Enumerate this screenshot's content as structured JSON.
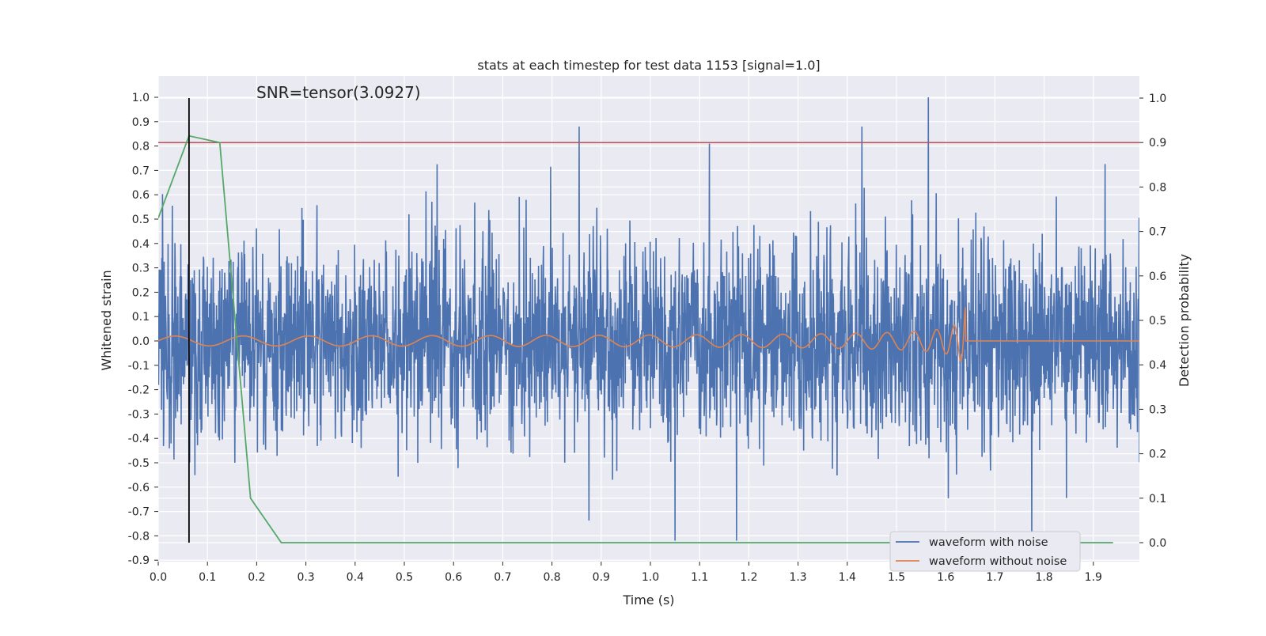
{
  "chart_data": {
    "type": "line",
    "title": "stats at each timestep for test data 1153 [signal=1.0]",
    "annotation": "SNR=tensor(3.0927)",
    "xlabel": "Time (s)",
    "ylabel_left": "Whitened strain",
    "ylabel_right": "Detection probability",
    "xlim": [
      0.0,
      1.995
    ],
    "ylim_left": [
      -0.9,
      1.0
    ],
    "ylim_right": [
      0.0,
      1.0
    ],
    "x_ticks": [
      "0.0",
      "0.1",
      "0.2",
      "0.3",
      "0.4",
      "0.5",
      "0.6",
      "0.7",
      "0.8",
      "0.9",
      "1.0",
      "1.1",
      "1.2",
      "1.3",
      "1.4",
      "1.5",
      "1.6",
      "1.7",
      "1.8",
      "1.9"
    ],
    "y_ticks_left": [
      "1.0",
      "0.9",
      "0.8",
      "0.7",
      "0.6",
      "0.5",
      "0.4",
      "0.3",
      "0.2",
      "0.1",
      "0.0",
      "-0.1",
      "-0.2",
      "-0.3",
      "-0.4",
      "-0.5",
      "-0.6",
      "-0.7",
      "-0.8",
      "-0.9"
    ],
    "y_ticks_right": [
      "1.0",
      "0.9",
      "0.8",
      "0.7",
      "0.6",
      "0.5",
      "0.4",
      "0.3",
      "0.2",
      "0.1",
      "0.0"
    ],
    "grid": true,
    "legend_position": "lower right",
    "series": [
      {
        "name": "waveform with noise",
        "color": "#4c72b0",
        "axis": "left",
        "noise_std": 0.2,
        "max": 1.0,
        "min": -0.82,
        "note_peaks": [
          {
            "x": 0.855,
            "y": 0.88
          },
          {
            "x": 1.12,
            "y": 0.81
          },
          {
            "x": 1.43,
            "y": 0.88
          },
          {
            "x": 1.565,
            "y": 1.0
          },
          {
            "x": 1.05,
            "y": -0.82
          },
          {
            "x": 1.775,
            "y": -0.82
          }
        ]
      },
      {
        "name": "waveform without noise",
        "color": "#dd8452",
        "axis": "left",
        "merger_time": 1.64,
        "peak_amplitude": 0.14
      },
      {
        "name": "detection probability",
        "color": "#55a868",
        "axis": "right",
        "x": [
          0.0,
          0.0625,
          0.125,
          0.1875,
          0.25,
          1.94
        ],
        "y": [
          0.73,
          0.915,
          0.9,
          0.1,
          0.0,
          0.0
        ]
      }
    ],
    "threshold": {
      "axis": "right",
      "value": 0.9,
      "color": "#c44e52"
    },
    "detection_marker": {
      "x": 0.0625,
      "color": "#000000"
    }
  }
}
